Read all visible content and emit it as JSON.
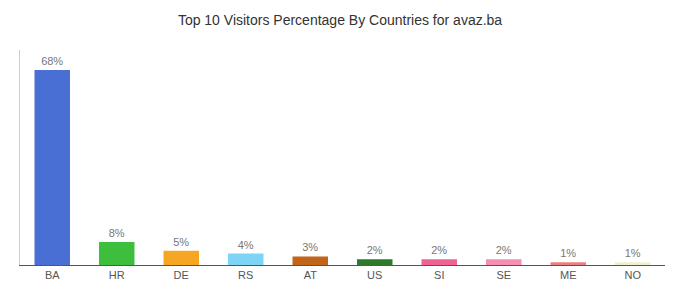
{
  "chart_data": {
    "type": "bar",
    "title": "Top 10 Visitors Percentage By Countries for avaz.ba",
    "categories": [
      "BA",
      "HR",
      "DE",
      "RS",
      "AT",
      "US",
      "SI",
      "SE",
      "ME",
      "NO"
    ],
    "values": [
      68,
      8,
      5,
      4,
      3,
      2,
      2,
      2,
      1,
      1
    ],
    "value_labels": [
      "68%",
      "8%",
      "5%",
      "4%",
      "3%",
      "2%",
      "2%",
      "2%",
      "1%",
      "1%"
    ],
    "colors": [
      "#4a6fd4",
      "#3dbf3d",
      "#f5a623",
      "#7dd4f5",
      "#c0651a",
      "#2d7a2d",
      "#f06292",
      "#f48fb1",
      "#e88080",
      "#f0f0d0"
    ],
    "ylim": [
      0,
      75
    ],
    "data_labels": true,
    "tick_labels": "x",
    "grid": false
  }
}
